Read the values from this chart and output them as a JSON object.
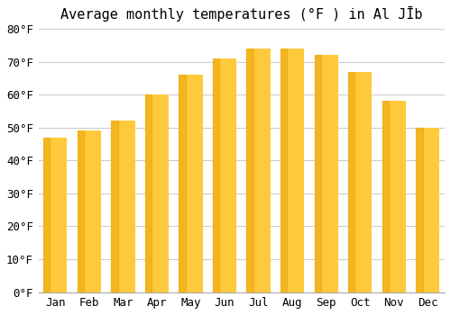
{
  "title": "Average monthly temperatures (°F ) in Al JĪb",
  "months": [
    "Jan",
    "Feb",
    "Mar",
    "Apr",
    "May",
    "Jun",
    "Jul",
    "Aug",
    "Sep",
    "Oct",
    "Nov",
    "Dec"
  ],
  "values": [
    47,
    49,
    52,
    60,
    66,
    71,
    74,
    74,
    72,
    67,
    58,
    50
  ],
  "bar_color": "#FFC93C",
  "bar_shade_color": "#E8A000",
  "ylim": [
    0,
    80
  ],
  "yticks": [
    0,
    10,
    20,
    30,
    40,
    50,
    60,
    70,
    80
  ],
  "ytick_labels": [
    "0°F",
    "10°F",
    "20°F",
    "30°F",
    "40°F",
    "50°F",
    "60°F",
    "70°F",
    "80°F"
  ],
  "background_color": "#ffffff",
  "grid_color": "#cccccc",
  "title_fontsize": 11,
  "tick_fontsize": 9
}
